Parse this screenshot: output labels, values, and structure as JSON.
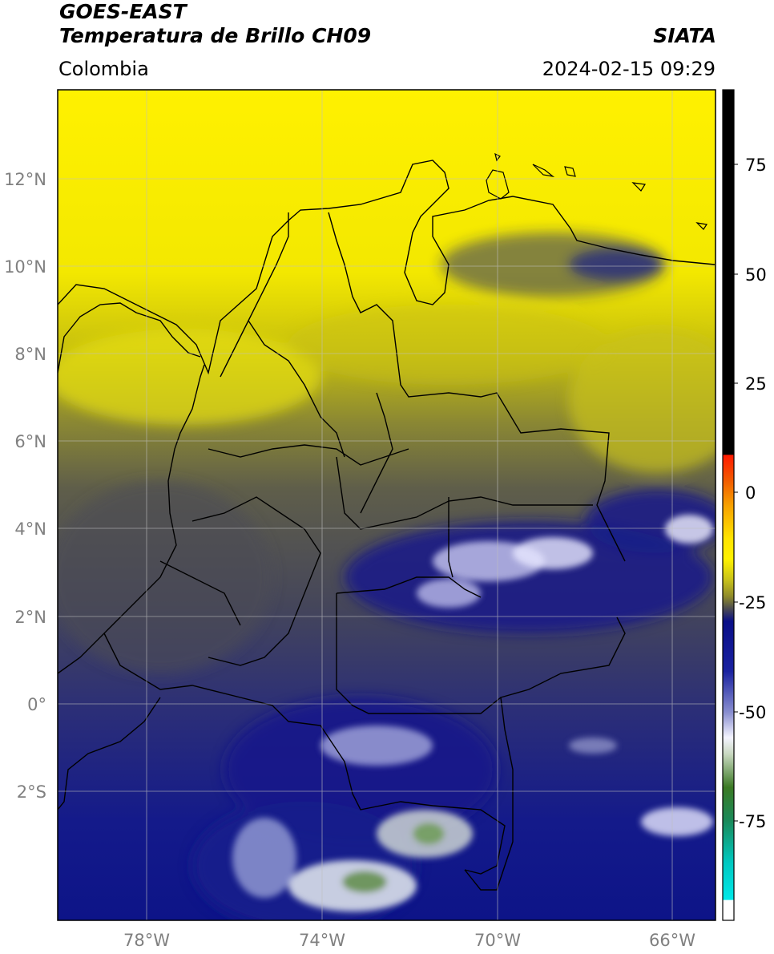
{
  "header": {
    "satellite": "GOES-EAST",
    "product": "Temperatura de Brillo CH09",
    "agency": "SIATA",
    "region": "Colombia",
    "datetime": "2024-02-15 09:29"
  },
  "map": {
    "lat_labels": [
      "12°N",
      "10°N",
      "8°N",
      "6°N",
      "4°N",
      "2°N",
      "0°",
      "2°S"
    ],
    "lon_labels": [
      "78°W",
      "74°W",
      "70°W",
      "66°W"
    ]
  },
  "colorbar": {
    "tick_labels": [
      "75",
      "50",
      "25",
      "0",
      "-25",
      "-50",
      "-75"
    ],
    "colors": {
      "black": "#000000",
      "red": "#ff1a00",
      "orange": "#f7a000",
      "yellow": "#fff200",
      "olive": "#8f8b2a",
      "gray": "#4a4a52",
      "navy": "#0a0f88",
      "white": "#f4f4ff",
      "green": "#3b7a24",
      "cyan": "#00d8d8"
    }
  }
}
